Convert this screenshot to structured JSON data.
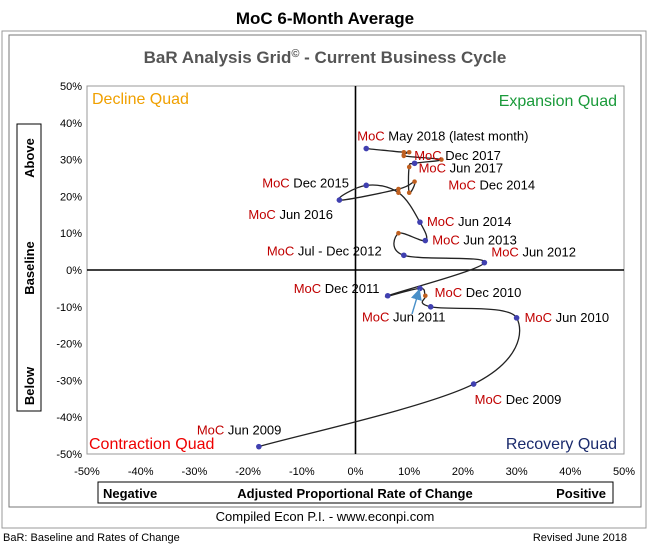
{
  "header": {
    "title": "MoC 6-Month Average",
    "subtitle": "BaR Analysis Grid",
    "subtitle_mark": "©",
    "subtitle_rest": " - Current Business Cycle"
  },
  "footer": {
    "credit": "Compiled Econ P.I. - www.econpi.com",
    "left_note": "BaR: Baseline and Rates of Change",
    "right_note": "Revised June 2018"
  },
  "x_axis_bar": {
    "left": "Negative",
    "center": "Adjusted Proportional Rate of Change",
    "right": "Positive"
  },
  "y_axis_bar": {
    "top": "Above",
    "middle": "Baseline",
    "bottom": "Below"
  },
  "quadrants": {
    "decline": {
      "label": "Decline Quad",
      "color": "#f0a000"
    },
    "expansion": {
      "label": "Expansion Quad",
      "color": "#1a9a3a"
    },
    "contraction": {
      "label": "Contraction Quad",
      "color": "#ee0000"
    },
    "recovery": {
      "label": "Recovery Quad",
      "color": "#1a2a6c"
    }
  },
  "colors": {
    "line": "#222222",
    "point_highlight": "#4040b0",
    "point_default": "#c06020",
    "label_prefix": "#c00000",
    "arrow": "#4a90c8"
  },
  "chart_data": {
    "type": "line",
    "title": "BaR Analysis Grid© - Current Business Cycle",
    "xlabel": "Adjusted Proportional Rate of Change",
    "ylabel": "Baseline",
    "xlim": [
      -50,
      50
    ],
    "ylim": [
      -50,
      50
    ],
    "x_ticks": [
      "-50%",
      "-40%",
      "-30%",
      "-20%",
      "-10%",
      "0%",
      "10%",
      "20%",
      "30%",
      "40%",
      "50%"
    ],
    "y_ticks": [
      "50%",
      "40%",
      "30%",
      "20%",
      "10%",
      "0%",
      "-10%",
      "-20%",
      "-30%",
      "-40%",
      "-50%"
    ],
    "grid": false,
    "legend": "none",
    "series": [
      {
        "x": [
          -18,
          22,
          30,
          14,
          13,
          12,
          6,
          24,
          9,
          8,
          13,
          12,
          8,
          2,
          -3,
          8,
          11,
          10,
          10,
          11,
          16,
          9,
          10,
          9,
          2
        ],
        "y": [
          -48,
          -31,
          -13,
          -10,
          -7,
          -5,
          -7,
          2,
          4,
          10,
          8,
          13,
          21,
          23,
          19,
          22,
          24,
          21,
          28,
          29,
          30,
          31,
          32,
          32,
          33
        ]
      }
    ],
    "annotations": [
      {
        "prefix": "MoC",
        "text": " Jun 2009",
        "x": -18,
        "y": -48
      },
      {
        "prefix": "MoC",
        "text": " Dec 2009",
        "x": 22,
        "y": -31
      },
      {
        "prefix": "MoC",
        "text": " Jun 2010",
        "x": 30,
        "y": -13
      },
      {
        "prefix": "MoC",
        "text": " Dec 2010",
        "x": 14,
        "y": -10
      },
      {
        "prefix": "MoC",
        "text": " Jun 2011",
        "x": 12,
        "y": -5
      },
      {
        "prefix": "MoC",
        "text": " Dec 2011",
        "x": 6,
        "y": -7
      },
      {
        "prefix": "MoC",
        "text": " Jun 2012",
        "x": 24,
        "y": 2
      },
      {
        "prefix": "MoC",
        "text": " Jul - Dec 2012",
        "x": 9,
        "y": 4
      },
      {
        "prefix": "MoC",
        "text": " Jun 2013",
        "x": 13,
        "y": 8
      },
      {
        "prefix": "MoC",
        "text": " Jun 2014",
        "x": 12,
        "y": 13
      },
      {
        "prefix": "MoC",
        "text": " Dec 2014",
        "x": 16,
        "y": 23
      },
      {
        "prefix": "MoC",
        "text": " Dec 2015",
        "x": 2,
        "y": 23
      },
      {
        "prefix": "MoC",
        "text": " Jun 2016",
        "x": -3,
        "y": 19
      },
      {
        "prefix": "MoC",
        "text": " Jun 2017",
        "x": 11,
        "y": 29
      },
      {
        "prefix": "MoC",
        "text": " Dec 2017",
        "x": 10,
        "y": 31
      },
      {
        "prefix": "MoC",
        "text": " May 2018 (latest month)",
        "x": 2,
        "y": 33
      }
    ]
  }
}
